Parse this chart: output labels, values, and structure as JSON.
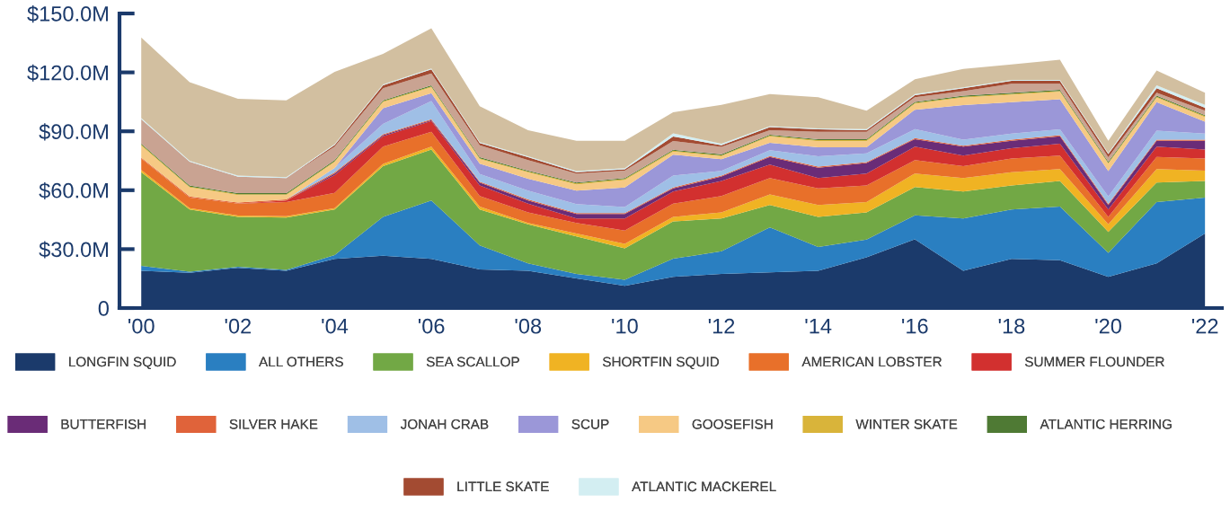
{
  "chart_data": {
    "type": "area",
    "stacked": true,
    "legend": "bottom",
    "grid": false,
    "x": [
      2000,
      2001,
      2002,
      2003,
      2004,
      2005,
      2006,
      2007,
      2008,
      2009,
      2010,
      2011,
      2012,
      2013,
      2014,
      2015,
      2016,
      2017,
      2018,
      2019,
      2020,
      2021,
      2022
    ],
    "xlim": [
      1999.55,
      2022.35
    ],
    "xticks": [
      {
        "value": 2000,
        "label": "'00"
      },
      {
        "value": 2002,
        "label": "'02"
      },
      {
        "value": 2004,
        "label": "'04"
      },
      {
        "value": 2006,
        "label": "'06"
      },
      {
        "value": 2008,
        "label": "'08"
      },
      {
        "value": 2010,
        "label": "'10"
      },
      {
        "value": 2012,
        "label": "'12"
      },
      {
        "value": 2014,
        "label": "'14"
      },
      {
        "value": 2016,
        "label": "'16"
      },
      {
        "value": 2018,
        "label": "'18"
      },
      {
        "value": 2020,
        "label": "'20"
      },
      {
        "value": 2022,
        "label": "'22"
      }
    ],
    "ylim": [
      0,
      150
    ],
    "yticks": [
      {
        "value": 0,
        "label": "0"
      },
      {
        "value": 30,
        "label": "$30.0M"
      },
      {
        "value": 60,
        "label": "$60.0M"
      },
      {
        "value": 90,
        "label": "$90.0M"
      },
      {
        "value": 120,
        "label": "$120.0M"
      },
      {
        "value": 150,
        "label": "$150.0M"
      }
    ],
    "series": [
      {
        "name": "LONGFIN SQUID",
        "color": "#1b3a6b",
        "values": [
          19,
          17.9,
          20.5,
          19,
          25,
          26.6,
          25,
          19.7,
          19,
          15.1,
          11.3,
          15.9,
          17.4,
          18.2,
          19,
          25.8,
          35,
          19,
          25,
          24.3,
          15.9,
          22.8,
          38
        ]
      },
      {
        "name": "ALL OTHERS",
        "color": "#2a7fc1",
        "values": [
          2.5,
          0.6,
          0.5,
          0.4,
          2,
          19.8,
          29.8,
          12.2,
          3.8,
          2.3,
          3.1,
          9.2,
          11.5,
          22.9,
          12.1,
          9.1,
          12.2,
          26.6,
          25.2,
          27.4,
          12.2,
          31.2,
          18.3
        ]
      },
      {
        "name": "SEA SCALLOP",
        "color": "#72a845",
        "values": [
          47.7,
          31.7,
          25.4,
          26.7,
          23.2,
          25.9,
          25.9,
          18.3,
          19.8,
          19.1,
          16,
          19,
          16.7,
          11.4,
          15.3,
          13.8,
          14.4,
          13.7,
          12.2,
          13,
          10.7,
          9.9,
          8.4
        ]
      },
      {
        "name": "SHORTFIN SQUID",
        "color": "#f0b323",
        "values": [
          1.1,
          0.7,
          0.7,
          0.7,
          0.7,
          1.1,
          1.5,
          1.5,
          0.7,
          1.5,
          2.3,
          2.3,
          3.1,
          5.3,
          6.1,
          5.3,
          6.9,
          6.9,
          6.8,
          6.1,
          3.8,
          6.9,
          5.3
        ]
      },
      {
        "name": "AMERICAN LOBSTER",
        "color": "#e8702a",
        "values": [
          5.8,
          5.4,
          6.1,
          7.2,
          7.7,
          8.8,
          7.6,
          5.3,
          5.4,
          5.3,
          6.8,
          6.8,
          8.3,
          8.4,
          8.4,
          8.4,
          6.8,
          6.1,
          6.9,
          6.8,
          3.8,
          6.1,
          6.1
        ]
      },
      {
        "name": "SUMMER FLOUNDER",
        "color": "#d2302f",
        "values": [
          0,
          0,
          0,
          0.8,
          9.1,
          5.3,
          5.4,
          5.4,
          4.5,
          2.3,
          6.1,
          6.1,
          7.7,
          6.8,
          5.3,
          6.1,
          6.9,
          5.3,
          5.3,
          6.1,
          3.8,
          5.3,
          4.6
        ]
      },
      {
        "name": "BUTTERFISH",
        "color": "#6a2c77",
        "values": [
          0,
          0,
          0,
          0,
          0.8,
          0.5,
          0.5,
          1.5,
          1.6,
          2.3,
          2.3,
          1.6,
          2.3,
          3.9,
          5.3,
          5.3,
          3.8,
          4.6,
          3.8,
          3.8,
          2.3,
          3,
          4.5
        ]
      },
      {
        "name": "SILVER HAKE",
        "color": "#e0633a",
        "values": [
          0.5,
          0.5,
          0.5,
          0.5,
          0.5,
          0.5,
          0.5,
          0.5,
          0.5,
          0.5,
          0.5,
          0.5,
          0.5,
          0.5,
          0.5,
          0.5,
          0.5,
          0.5,
          0.5,
          0.5,
          0.5,
          0.5,
          0.5
        ]
      },
      {
        "name": "JONAH CRAB",
        "color": "#9fbfe6",
        "values": [
          0,
          0,
          0,
          0,
          2.3,
          5.3,
          9.2,
          3.8,
          4.5,
          4.5,
          3.1,
          6.1,
          2.3,
          3,
          5.3,
          4.5,
          4.6,
          3.1,
          3.1,
          3,
          3.8,
          4.6,
          3.1
        ]
      },
      {
        "name": "SCUP",
        "color": "#9b97d8",
        "values": [
          0,
          0,
          0,
          0,
          0,
          7.9,
          4,
          5.3,
          6.1,
          6.9,
          9.9,
          10.6,
          6,
          3.8,
          4.6,
          3.1,
          9.9,
          17.5,
          16,
          15.3,
          12.9,
          14.5,
          6.1
        ]
      },
      {
        "name": "GOOSEFISH",
        "color": "#f6c984",
        "values": [
          6.1,
          4.6,
          3.8,
          2.2,
          3,
          3.1,
          3,
          2.3,
          3.1,
          3.1,
          3.8,
          1.5,
          1.5,
          3.1,
          3.1,
          3.1,
          3,
          3.8,
          3.8,
          3.8,
          3.8,
          2.3,
          2.3
        ]
      },
      {
        "name": "WINTER SKATE",
        "color": "#d9b43a",
        "values": [
          0.5,
          0.5,
          0.5,
          0.5,
          0.5,
          0.5,
          0.5,
          0.5,
          0.5,
          0.5,
          0.5,
          0.5,
          0.5,
          0.5,
          0.5,
          0.5,
          0.5,
          0.5,
          0.5,
          0.5,
          0.5,
          0.5,
          0.5
        ]
      },
      {
        "name": "ATLANTIC HERRING",
        "color": "#4f7a34",
        "values": [
          0.5,
          0.5,
          0.5,
          0.5,
          0.5,
          0.5,
          0.5,
          0.5,
          0.5,
          0.5,
          0.5,
          0.5,
          0.5,
          0.5,
          0.5,
          0.5,
          0.5,
          0.5,
          0.5,
          0.5,
          0.5,
          0.5,
          0.5
        ]
      },
      {
        "color": "#c9a392",
        "values": [
          12.5,
          12.1,
          8.4,
          7.7,
          6.9,
          6.1,
          6.1,
          6.1,
          5.3,
          4.6,
          3.8,
          4.5,
          3.8,
          2.3,
          3.8,
          3.8,
          2.3,
          2.3,
          4.6,
          3.1,
          2.3,
          1.5,
          2.3
        ]
      },
      {
        "name": "LITTLE SKATE",
        "color": "#a34b32",
        "values": [
          0,
          0,
          0,
          0,
          0.8,
          1.5,
          2,
          1.1,
          1.5,
          0.7,
          0.7,
          2.3,
          0.8,
          1.5,
          1.2,
          0.8,
          1.1,
          1.5,
          1.5,
          1.5,
          1.6,
          2.3,
          1.5
        ]
      },
      {
        "name": "ATLANTIC MACKEREL",
        "color": "#d3eef2",
        "values": [
          0.5,
          0.5,
          0.5,
          0.5,
          0.5,
          0.5,
          0.5,
          0.5,
          0.5,
          0.5,
          0.5,
          1.6,
          0.8,
          0.5,
          0.5,
          0.5,
          0.5,
          0.5,
          0.5,
          0.5,
          0.5,
          1.5,
          1.5
        ]
      },
      {
        "color": "#d2bfa0",
        "values": [
          41.1,
          40,
          39.2,
          39.1,
          36.8,
          15.5,
          20.4,
          18.3,
          13.3,
          15.5,
          14,
          10.7,
          19.8,
          16.3,
          15.8,
          9.4,
          7.6,
          9.4,
          7.9,
          10.2,
          6.3,
          7.6,
          6.1
        ]
      }
    ]
  }
}
